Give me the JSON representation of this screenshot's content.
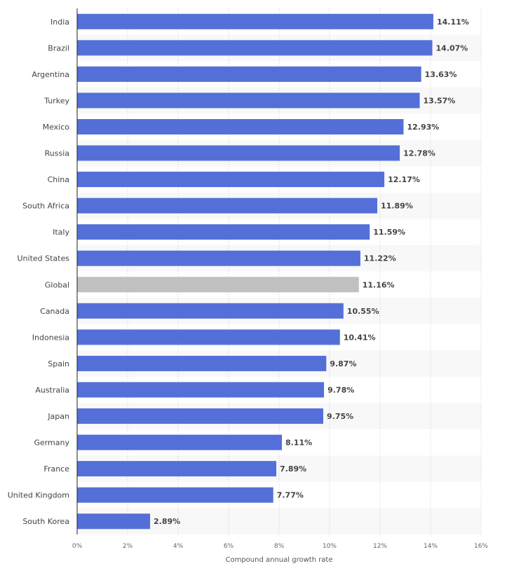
{
  "chart_data": {
    "type": "bar",
    "orientation": "horizontal",
    "categories": [
      "India",
      "Brazil",
      "Argentina",
      "Turkey",
      "Mexico",
      "Russia",
      "China",
      "South Africa",
      "Italy",
      "United States",
      "Global",
      "Canada",
      "Indonesia",
      "Spain",
      "Australia",
      "Japan",
      "Germany",
      "France",
      "United Kingdom",
      "South Korea"
    ],
    "values": [
      14.11,
      14.07,
      13.63,
      13.57,
      12.93,
      12.78,
      12.17,
      11.89,
      11.59,
      11.22,
      11.16,
      10.55,
      10.41,
      9.87,
      9.78,
      9.75,
      8.11,
      7.89,
      7.77,
      2.89
    ],
    "data_labels": [
      "14.11%",
      "14.07%",
      "13.63%",
      "13.57%",
      "12.93%",
      "12.78%",
      "12.17%",
      "11.89%",
      "11.59%",
      "11.22%",
      "11.16%",
      "10.55%",
      "10.41%",
      "9.87%",
      "9.78%",
      "9.75%",
      "8.11%",
      "7.89%",
      "7.77%",
      "2.89%"
    ],
    "highlight_category": "Global",
    "xlabel": "Compound annual growth rate",
    "xlim": [
      0,
      16
    ],
    "x_ticks": [
      0,
      2,
      4,
      6,
      8,
      10,
      12,
      14,
      16
    ],
    "x_tick_labels": [
      "0%",
      "2%",
      "4%",
      "6%",
      "8%",
      "10%",
      "12%",
      "14%",
      "16%"
    ],
    "grid": true,
    "colors": {
      "bar": "#5470d8",
      "highlight": "#c0c0c0",
      "row_stripe": "#f8f8f8",
      "grid": "#cccccc"
    }
  }
}
